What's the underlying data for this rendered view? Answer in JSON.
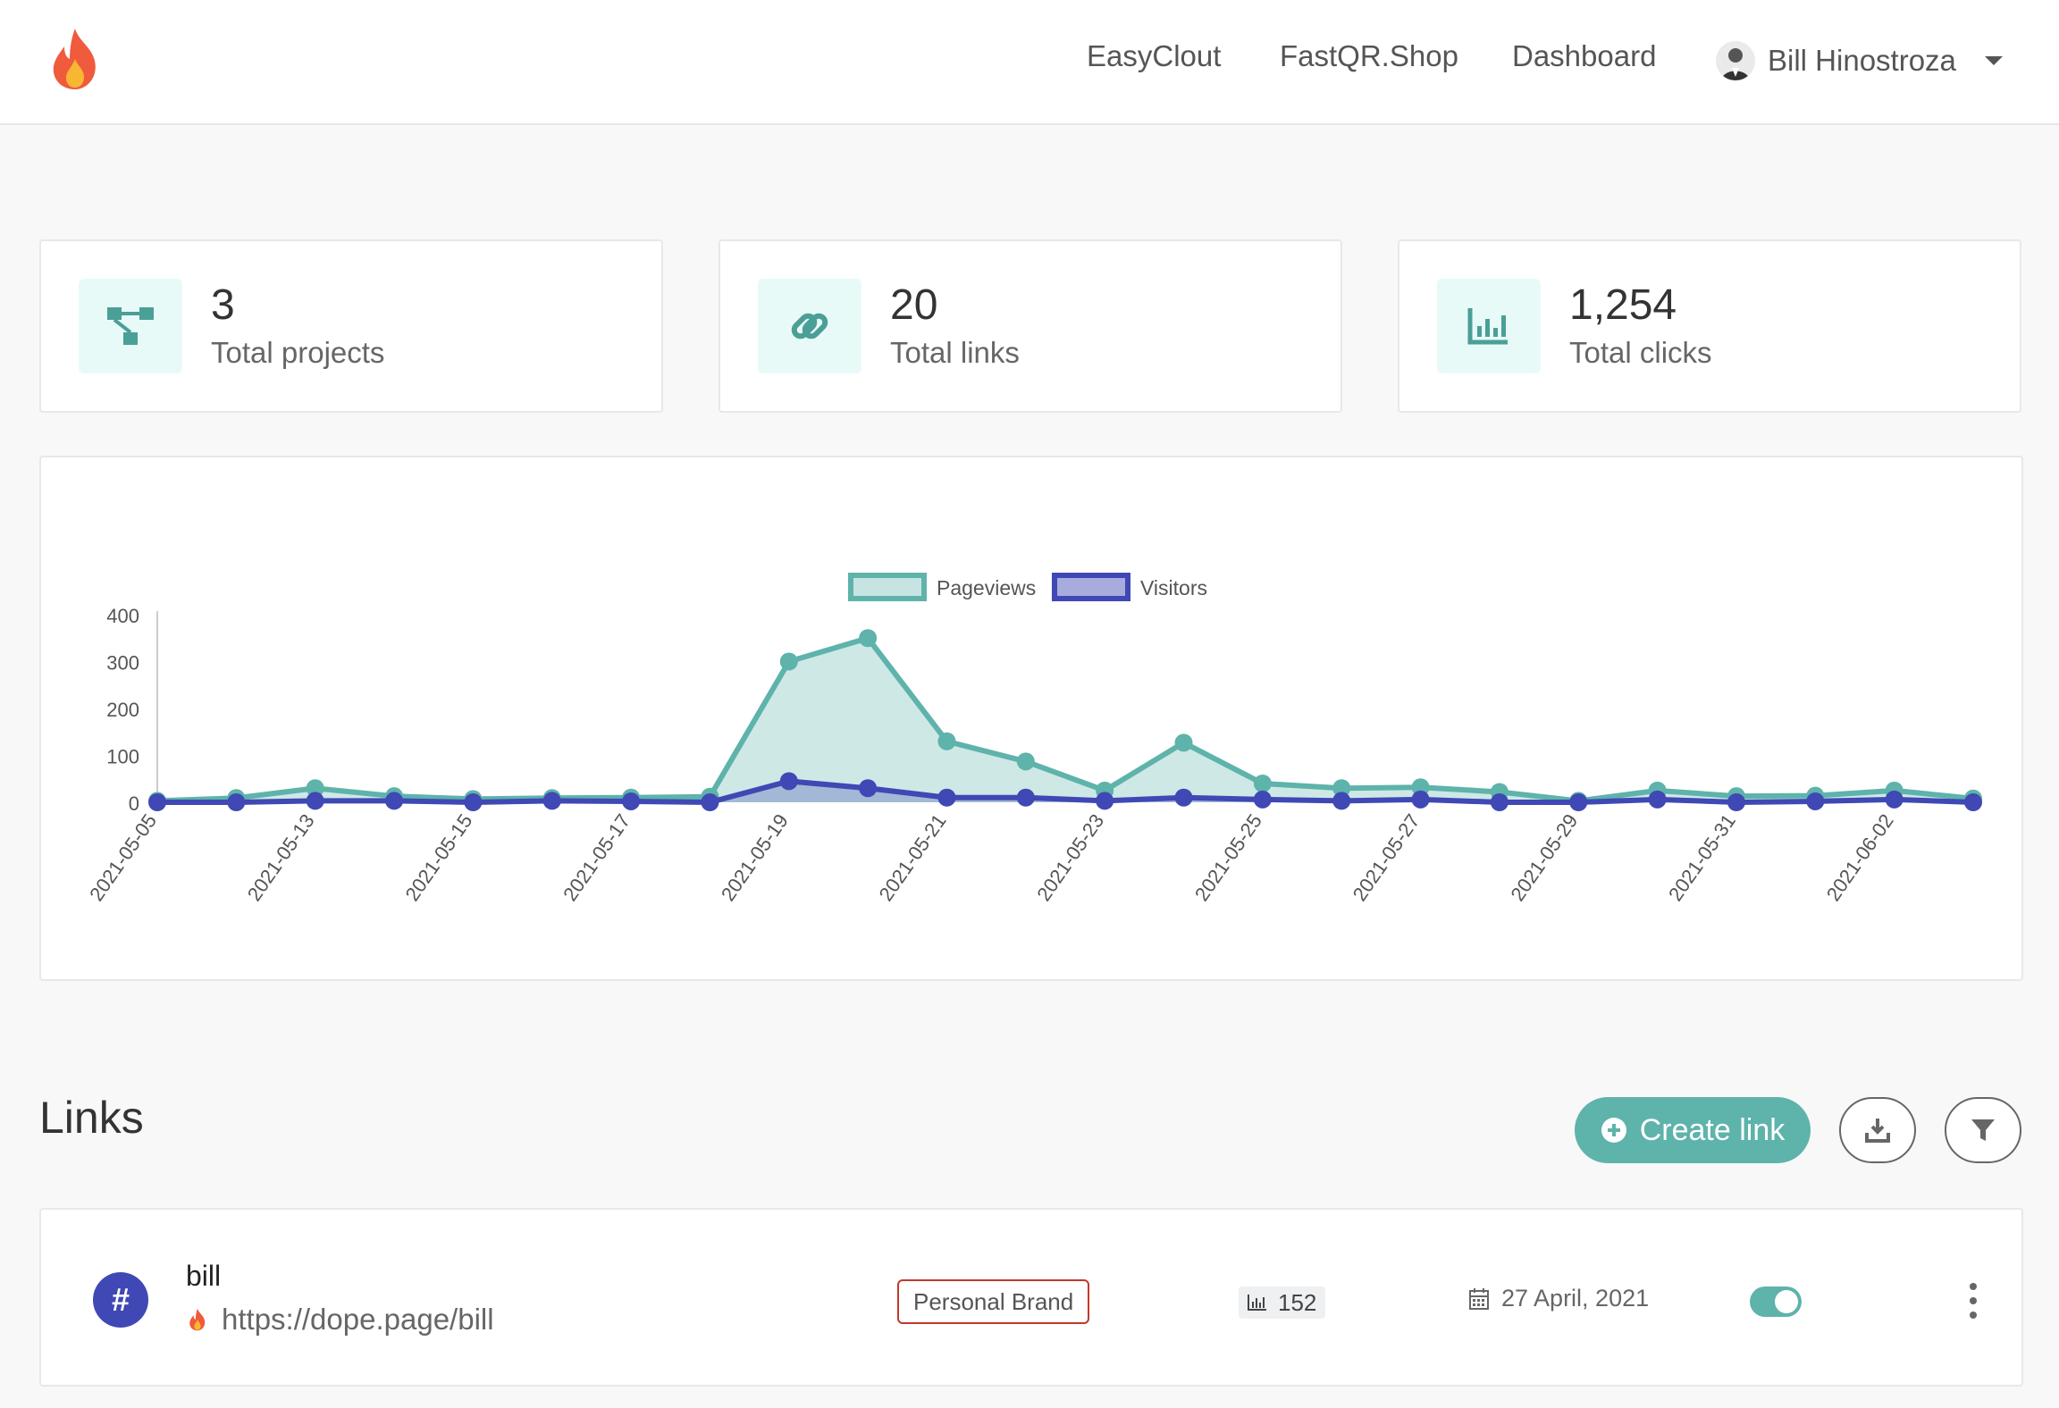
{
  "nav": {
    "links": [
      "EasyClout",
      "FastQR.Shop",
      "Dashboard"
    ],
    "user_name": "Bill Hinostroza"
  },
  "stats": [
    {
      "value": "3",
      "label": "Total projects",
      "icon": "project-tree-icon"
    },
    {
      "value": "20",
      "label": "Total links",
      "icon": "link-icon"
    },
    {
      "value": "1,254",
      "label": "Total clicks",
      "icon": "bar-chart-icon"
    }
  ],
  "chart_data": {
    "type": "line",
    "title": "",
    "legend": [
      "Pageviews",
      "Visitors"
    ],
    "legend_position": "top-center",
    "x": [
      "2021-05-05",
      "2021-05-12",
      "2021-05-13",
      "2021-05-14",
      "2021-05-15",
      "2021-05-16",
      "2021-05-17",
      "2021-05-18",
      "2021-05-19",
      "2021-05-20",
      "2021-05-21",
      "2021-05-22",
      "2021-05-23",
      "2021-05-24",
      "2021-05-25",
      "2021-05-26",
      "2021-05-27",
      "2021-05-28",
      "2021-05-29",
      "2021-05-30",
      "2021-05-31",
      "2021-06-01",
      "2021-06-02",
      "2021-06-03"
    ],
    "x_tick_labels": [
      "2021-05-05",
      "2021-05-13",
      "2021-05-15",
      "2021-05-17",
      "2021-05-19",
      "2021-05-21",
      "2021-05-23",
      "2021-05-25",
      "2021-05-27",
      "2021-05-29",
      "2021-05-31",
      "2021-06-02"
    ],
    "series": [
      {
        "name": "Pageviews",
        "color": "#5eb3ab",
        "fill": "rgba(94,179,171,0.3)",
        "values": [
          3,
          9,
          30,
          13,
          7,
          9,
          10,
          12,
          300,
          350,
          130,
          87,
          25,
          127,
          40,
          30,
          32,
          22,
          3,
          25,
          13,
          14,
          25,
          8
        ]
      },
      {
        "name": "Visitors",
        "color": "#3f48b4",
        "fill": "rgba(63,72,180,0.3)",
        "values": [
          0,
          0,
          3,
          3,
          0,
          3,
          2,
          0,
          45,
          30,
          10,
          10,
          3,
          10,
          6,
          3,
          6,
          0,
          0,
          6,
          0,
          2,
          6,
          0
        ]
      }
    ],
    "y_ticks": [
      0,
      100,
      200,
      300,
      400
    ],
    "ylim": [
      0,
      400
    ],
    "grid": false
  },
  "links": {
    "title": "Links",
    "create_label": "Create link",
    "items": [
      {
        "badge": "#",
        "name": "bill",
        "url": "https://dope.page/bill",
        "tag": "Personal Brand",
        "clicks": "152",
        "date": "27 April, 2021",
        "enabled": true
      }
    ]
  },
  "colors": {
    "accent": "#5eb3ab",
    "primary": "#3f48b4",
    "tag_border": "#c0392b"
  }
}
